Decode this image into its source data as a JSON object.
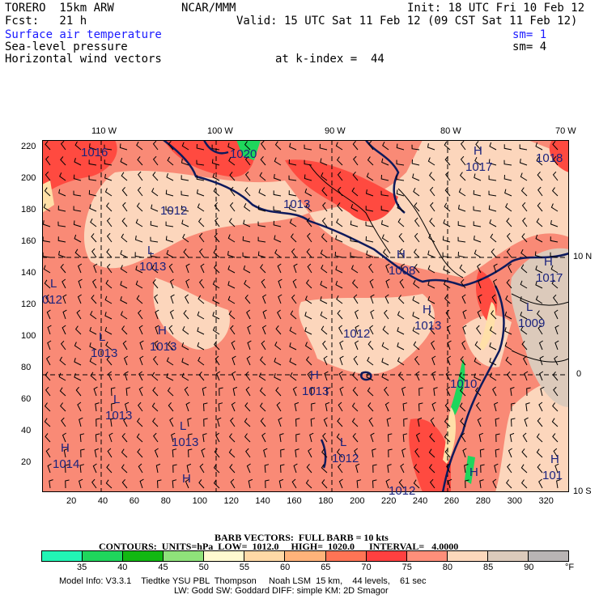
{
  "header": {
    "model": "TORERO  15km ARW",
    "org": "NCAR/MMM",
    "init": "Init: 18 UTC Fri 10 Feb 12",
    "fcst": "Fcst:   21 h",
    "valid": "Valid: 15 UTC Sat 11 Feb 12 (09 CST Sat 11 Feb 12)",
    "field1": "Surface air temperature",
    "field1_sm": "sm= 1",
    "field2": "Sea-level pressure",
    "field2_sm": "sm= 4",
    "field3": "Horizontal wind vectors",
    "field3_level": "at k-index =  44"
  },
  "axes": {
    "top_lon": [
      "110 W",
      "100 W",
      "90 W",
      "80 W",
      "70 W"
    ],
    "right_lat": [
      "10 N",
      "0",
      "10 S"
    ],
    "left_y": [
      "220",
      "200",
      "180",
      "160",
      "140",
      "120",
      "100",
      "80",
      "60",
      "40",
      "20"
    ],
    "bottom_x": [
      "20",
      "40",
      "60",
      "80",
      "100",
      "120",
      "140",
      "160",
      "180",
      "200",
      "220",
      "240",
      "260",
      "280",
      "300",
      "320"
    ]
  },
  "pressure_labels": [
    {
      "sym": "",
      "val": "1016"
    },
    {
      "sym": "",
      "val": "1020"
    },
    {
      "sym": "H",
      "val": "1017"
    },
    {
      "sym": "",
      "val": "1018"
    },
    {
      "sym": "",
      "val": "1012"
    },
    {
      "sym": "",
      "val": "1013"
    },
    {
      "sym": "L",
      "val": "1013"
    },
    {
      "sym": "H",
      "val": "1008"
    },
    {
      "sym": "H",
      "val": "1017"
    },
    {
      "sym": "L",
      "val": "012"
    },
    {
      "sym": "H",
      "val": "1013"
    },
    {
      "sym": "",
      "val": "1012"
    },
    {
      "sym": "L",
      "val": "1009"
    },
    {
      "sym": "H",
      "val": "1013"
    },
    {
      "sym": "L",
      "val": "1013"
    },
    {
      "sym": "H",
      "val": "1013"
    },
    {
      "sym": "",
      "val": "1010"
    },
    {
      "sym": "L",
      "val": "1013"
    },
    {
      "sym": "L",
      "val": "1013"
    },
    {
      "sym": "L",
      "val": "1012"
    },
    {
      "sym": "H",
      "val": "1014"
    },
    {
      "sym": "H",
      "val": ""
    },
    {
      "sym": "",
      "val": "1012"
    },
    {
      "sym": "H",
      "val": ""
    },
    {
      "sym": "H",
      "val": "101"
    }
  ],
  "legend": {
    "barb": "BARB VECTORS:  FULL BARB = 10 kts",
    "contours": "CONTOURS:  UNITS=hPa  LOW=  1012.0     HIGH=  1020.0      INTERVAL=   4.0000",
    "ticks": [
      "35",
      "40",
      "45",
      "50",
      "55",
      "60",
      "65",
      "70",
      "75",
      "80",
      "85",
      "90"
    ],
    "unit": "°F",
    "colors": [
      "#22f5b5",
      "#1fd65c",
      "#12b812",
      "#8fe27a",
      "#fffad0",
      "#ffd9a6",
      "#ffb37a",
      "#ff7455",
      "#ff4040",
      "#ff8f7a",
      "#fcd8bc",
      "#dccabb",
      "#b9b4b4"
    ]
  },
  "footer": {
    "line1": "Model Info: V3.3.1    Tiedtke YSU PBL  Thompson     Noah LSM  15 km,    44 levels,    61 sec",
    "line2": "LW: Godd SW: Goddard DIFF: simple KM: 2D Smagor"
  }
}
